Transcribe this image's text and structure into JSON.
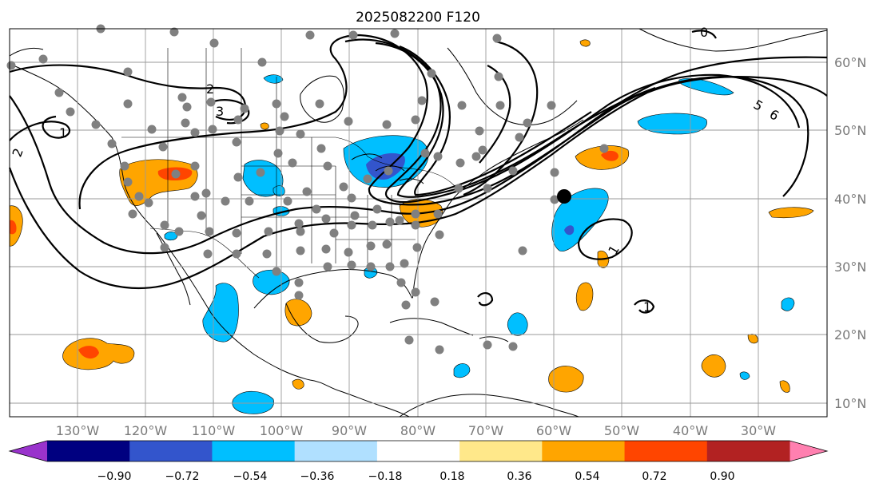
{
  "title": "2025082200 F120",
  "map": {
    "lon_range": [
      -140,
      -18
    ],
    "lat_range": [
      8,
      65
    ],
    "lon_ticks": [
      {
        "lon": -130,
        "label": "130°W"
      },
      {
        "lon": -120,
        "label": "120°W"
      },
      {
        "lon": -110,
        "label": "110°W"
      },
      {
        "lon": -100,
        "label": "100°W"
      },
      {
        "lon": -90,
        "label": "90°W"
      },
      {
        "lon": -80,
        "label": "80°W"
      },
      {
        "lon": -70,
        "label": "70°W"
      },
      {
        "lon": -60,
        "label": "60°W"
      },
      {
        "lon": -50,
        "label": "50°W"
      },
      {
        "lon": -40,
        "label": "40°W"
      },
      {
        "lon": -30,
        "label": "30°W"
      }
    ],
    "lat_ticks": [
      {
        "lat": 60,
        "label": "60°N"
      },
      {
        "lat": 50,
        "label": "50°N"
      },
      {
        "lat": 40,
        "label": "40°N"
      },
      {
        "lat": 30,
        "label": "30°N"
      },
      {
        "lat": 20,
        "label": "20°N"
      },
      {
        "lat": 10,
        "label": "10°N"
      }
    ],
    "contour_labels": [
      "2",
      "3",
      "2",
      "1",
      "1",
      "1",
      "5",
      "6",
      "0"
    ],
    "marker_colors": {
      "station": "#808080",
      "highlight": "#000000"
    }
  },
  "colorbar": {
    "colors": [
      "#9933cc",
      "#000080",
      "#3355cc",
      "#00bfff",
      "#b0e0ff",
      "#ffffff",
      "#ffe88a",
      "#ffa500",
      "#ff4500",
      "#b22222",
      "#ff80b0"
    ],
    "ticks": [
      "−0.90",
      "−0.72",
      "−0.54",
      "−0.36",
      "−0.18",
      "0.18",
      "0.36",
      "0.54",
      "0.72",
      "0.90"
    ]
  }
}
